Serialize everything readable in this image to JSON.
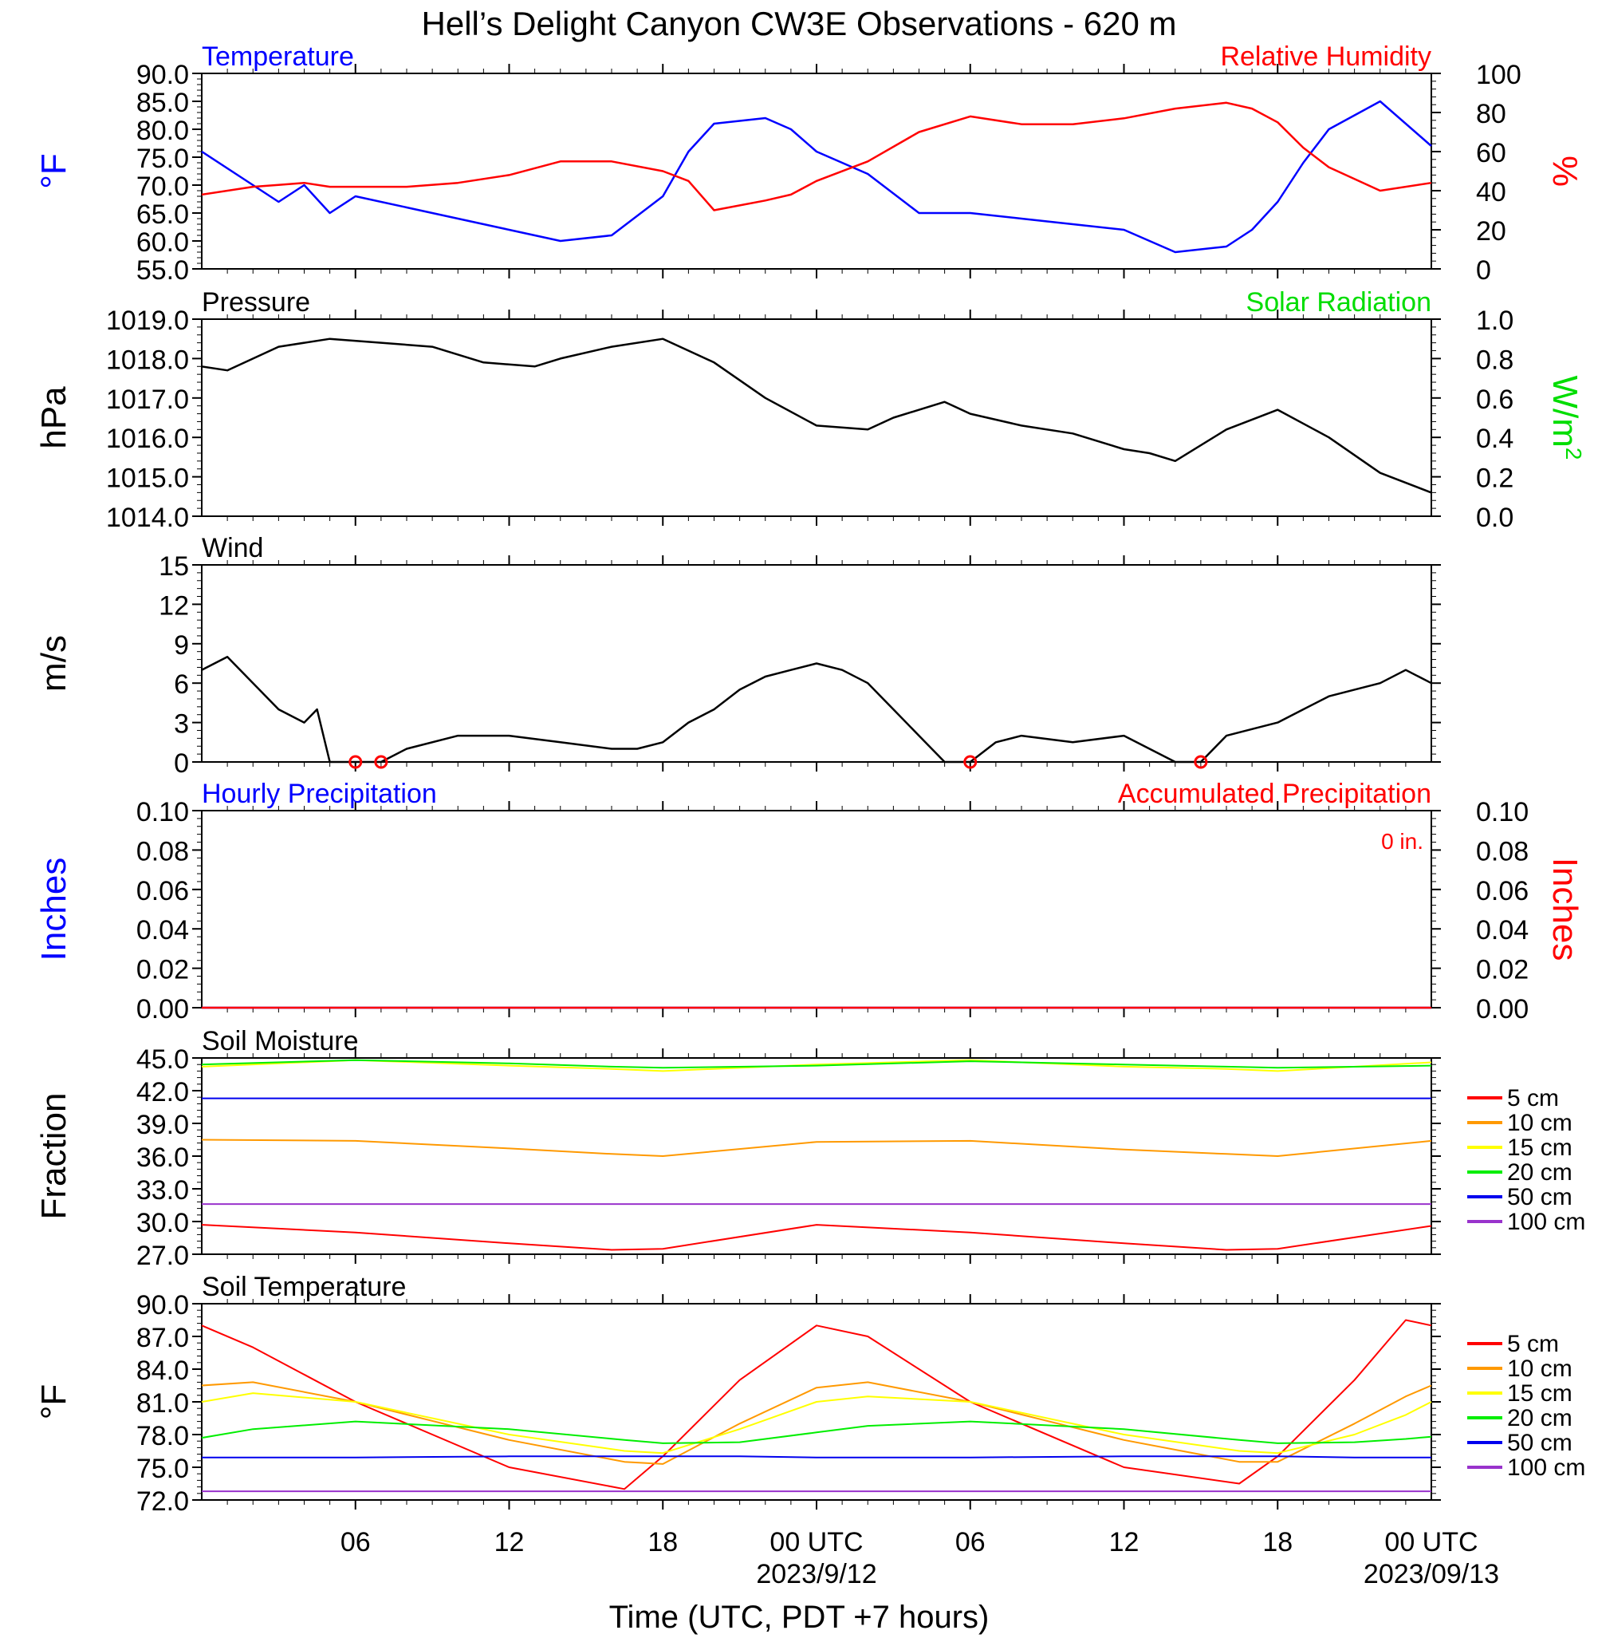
{
  "title": "Hell’s Delight Canyon CW3E Observations - 620 m",
  "xlabel": "Time (UTC, PDT +7 hours)",
  "colors": {
    "blue": "#0000ff",
    "red": "#ff0000",
    "green": "#00dd00",
    "black": "#000000"
  },
  "x_ticks": {
    "hours": [
      6,
      12,
      18,
      24,
      30,
      36,
      42,
      48
    ],
    "labels": [
      "06",
      "12",
      "18",
      "00 UTC",
      "06",
      "12",
      "18",
      "00 UTC"
    ],
    "date_labels": [
      "2023/9/12",
      "2023/09/13"
    ]
  },
  "chart_data": [
    {
      "id": "temp_rh",
      "type": "line",
      "title_left": "Temperature",
      "title_right": "Relative Humidity",
      "ylabel_left": "°F",
      "ylabel_right": "%",
      "ylim_left": [
        55,
        90
      ],
      "yticks_left": [
        "90.0",
        "85.0",
        "80.0",
        "75.0",
        "70.0",
        "65.0",
        "60.0",
        "55.0"
      ],
      "ylim_right": [
        0,
        100
      ],
      "yticks_right": [
        "100",
        "80",
        "60",
        "40",
        "20",
        "0"
      ],
      "x_hours": [
        0,
        2,
        3,
        4,
        5,
        6,
        8,
        10,
        12,
        14,
        16,
        18,
        19,
        20,
        22,
        23,
        24,
        26,
        28,
        30,
        32,
        34,
        36,
        38,
        40,
        41,
        42,
        43,
        44,
        46,
        48
      ],
      "series": [
        {
          "axis": "left",
          "color": "#0000ff",
          "values": [
            76,
            70,
            67,
            70,
            65,
            68,
            66,
            64,
            62,
            60,
            61,
            68,
            76,
            81,
            82,
            80,
            76,
            72,
            65,
            65,
            64,
            63,
            62,
            58,
            59,
            62,
            67,
            74,
            80,
            85,
            77
          ]
        },
        {
          "axis": "right",
          "color": "#ff0000",
          "values": [
            38,
            42,
            43,
            44,
            42,
            42,
            42,
            44,
            48,
            55,
            55,
            50,
            45,
            30,
            35,
            38,
            45,
            55,
            70,
            78,
            74,
            74,
            77,
            82,
            85,
            82,
            75,
            62,
            52,
            40,
            44
          ]
        }
      ]
    },
    {
      "id": "pressure",
      "type": "line",
      "title_left": "Pressure",
      "title_right": "Solar Radiation",
      "ylabel_left": "hPa",
      "ylabel_right": "W/m",
      "ylabel_right_sup": "2",
      "ylim_left": [
        1014,
        1019
      ],
      "yticks_left": [
        "1019.0",
        "1018.0",
        "1017.0",
        "1016.0",
        "1015.0",
        "1014.0"
      ],
      "ylim_right": [
        0,
        1
      ],
      "yticks_right": [
        "1.0",
        "0.8",
        "0.6",
        "0.4",
        "0.2",
        "0.0"
      ],
      "x_hours": [
        0,
        1,
        3,
        5,
        7,
        9,
        11,
        13,
        14,
        16,
        18,
        20,
        22,
        24,
        26,
        27,
        29,
        30,
        32,
        34,
        36,
        37,
        38,
        40,
        42,
        44,
        46,
        48
      ],
      "series": [
        {
          "axis": "left",
          "color": "#000000",
          "values": [
            1017.8,
            1017.7,
            1018.3,
            1018.5,
            1018.4,
            1018.3,
            1017.9,
            1017.8,
            1018.0,
            1018.3,
            1018.5,
            1017.9,
            1017.0,
            1016.3,
            1016.2,
            1016.5,
            1016.9,
            1016.6,
            1016.3,
            1016.1,
            1015.7,
            1015.6,
            1015.4,
            1016.2,
            1016.7,
            1016.0,
            1015.1,
            1014.6
          ]
        }
      ]
    },
    {
      "id": "wind",
      "type": "line",
      "title_left": "Wind",
      "ylabel_left": "m/s",
      "ylim_left": [
        0,
        15
      ],
      "yticks_left": [
        "15",
        "12",
        "9",
        "6",
        "3",
        "0"
      ],
      "x_hours": [
        0,
        1,
        2,
        3,
        4,
        4.5,
        5,
        6,
        7,
        8,
        10,
        12,
        14,
        16,
        17,
        18,
        19,
        20,
        21,
        22,
        23,
        24,
        25,
        26,
        27,
        28,
        29,
        30,
        31,
        32,
        34,
        36,
        38,
        39,
        40,
        41,
        42,
        43,
        44,
        45,
        46,
        47,
        48
      ],
      "series": [
        {
          "axis": "left",
          "color": "#000000",
          "values": [
            7,
            8,
            6,
            4,
            3,
            4,
            0,
            0,
            0,
            1,
            2,
            2,
            1.5,
            1,
            1,
            1.5,
            3,
            4,
            5.5,
            6.5,
            7,
            7.5,
            7,
            6,
            4,
            2,
            0,
            0,
            1.5,
            2,
            1.5,
            2,
            0,
            0,
            2,
            2.5,
            3,
            4,
            5,
            5.5,
            6,
            7,
            6
          ]
        }
      ],
      "calm_hours": [
        6.0,
        7.0,
        30.0,
        39.0
      ]
    },
    {
      "id": "precip",
      "type": "line",
      "title_left": "Hourly Precipitation",
      "title_right": "Accumulated Precipitation",
      "annotation": "0 in.",
      "ylabel_left": "Inches",
      "ylabel_right": "Inches",
      "ylim_left": [
        0,
        0.1
      ],
      "yticks_left": [
        "0.10",
        "0.08",
        "0.06",
        "0.04",
        "0.02",
        "0.00"
      ],
      "ylim_right": [
        0,
        0.1
      ],
      "yticks_right": [
        "0.10",
        "0.08",
        "0.06",
        "0.04",
        "0.02",
        "0.00"
      ],
      "x_hours": [
        0,
        48
      ],
      "series": [
        {
          "axis": "left",
          "color": "#0000ff",
          "values": [
            0,
            0
          ]
        },
        {
          "axis": "right",
          "color": "#ff0000",
          "values": [
            0,
            0
          ]
        }
      ]
    },
    {
      "id": "soil_moisture",
      "type": "line",
      "title_left": "Soil Moisture",
      "ylabel_left": "Fraction",
      "ylim_left": [
        27,
        45
      ],
      "yticks_left": [
        "45.0",
        "42.0",
        "39.0",
        "36.0",
        "33.0",
        "30.0",
        "27.0"
      ],
      "x_hours": [
        0,
        6,
        12,
        16,
        18,
        24,
        30,
        36,
        40,
        42,
        48
      ],
      "series": [
        {
          "name": "5 cm",
          "color": "#ff0000",
          "values": [
            29.7,
            29.0,
            28.0,
            27.4,
            27.5,
            29.7,
            29.0,
            28.0,
            27.4,
            27.5,
            29.6
          ]
        },
        {
          "name": "10 cm",
          "color": "#ff9900",
          "values": [
            37.5,
            37.4,
            36.7,
            36.2,
            36.0,
            37.3,
            37.4,
            36.6,
            36.2,
            36.0,
            37.4
          ]
        },
        {
          "name": "15 cm",
          "color": "#ffff00",
          "values": [
            44.2,
            44.8,
            44.3,
            44.0,
            43.8,
            44.4,
            44.8,
            44.2,
            44.0,
            43.8,
            44.6
          ]
        },
        {
          "name": "20 cm",
          "color": "#00ee00",
          "values": [
            44.4,
            44.8,
            44.5,
            44.2,
            44.1,
            44.3,
            44.7,
            44.4,
            44.2,
            44.1,
            44.3
          ]
        },
        {
          "name": "50 cm",
          "color": "#0000ee",
          "values": [
            41.3,
            41.3,
            41.3,
            41.3,
            41.3,
            41.3,
            41.3,
            41.3,
            41.3,
            41.3,
            41.3
          ]
        },
        {
          "name": "100 cm",
          "color": "#9933cc",
          "values": [
            31.6,
            31.6,
            31.6,
            31.6,
            31.6,
            31.6,
            31.6,
            31.6,
            31.6,
            31.6,
            31.6
          ]
        }
      ]
    },
    {
      "id": "soil_temp",
      "type": "line",
      "title_left": "Soil Temperature",
      "ylabel_left": "°F",
      "ylim_left": [
        72,
        90
      ],
      "yticks_left": [
        "90.0",
        "87.0",
        "84.0",
        "81.0",
        "78.0",
        "75.0",
        "72.0"
      ],
      "x_hours": [
        0,
        2,
        6,
        12,
        16.5,
        18,
        21,
        24,
        26,
        30,
        36,
        40.5,
        42,
        45,
        47,
        48
      ],
      "series": [
        {
          "name": "5 cm",
          "color": "#ff0000",
          "values": [
            88,
            86,
            81,
            75,
            73,
            76,
            83,
            88,
            87,
            81,
            75,
            73.5,
            76,
            83,
            88.5,
            88
          ]
        },
        {
          "name": "10 cm",
          "color": "#ff9900",
          "values": [
            82.5,
            82.8,
            81,
            77.5,
            75.5,
            75.3,
            79,
            82.3,
            82.8,
            81,
            77.5,
            75.5,
            75.5,
            79,
            81.5,
            82.5
          ]
        },
        {
          "name": "15 cm",
          "color": "#ffff00",
          "values": [
            81,
            81.8,
            81,
            78,
            76.5,
            76.3,
            78.5,
            81,
            81.5,
            81,
            78,
            76.5,
            76.3,
            78,
            79.8,
            81
          ]
        },
        {
          "name": "20 cm",
          "color": "#00ee00",
          "values": [
            77.7,
            78.5,
            79.2,
            78.5,
            77.5,
            77.2,
            77.3,
            78.2,
            78.8,
            79.2,
            78.5,
            77.5,
            77.2,
            77.3,
            77.6,
            77.8
          ]
        },
        {
          "name": "50 cm",
          "color": "#0000ee",
          "values": [
            75.9,
            75.9,
            75.9,
            76,
            76,
            76,
            76,
            75.9,
            75.9,
            75.9,
            76,
            76,
            76,
            75.9,
            75.9,
            75.9
          ]
        },
        {
          "name": "100 cm",
          "color": "#9933cc",
          "values": [
            72.8,
            72.8,
            72.8,
            72.8,
            72.8,
            72.8,
            72.8,
            72.8,
            72.8,
            72.8,
            72.8,
            72.8,
            72.8,
            72.8,
            72.8,
            72.8
          ]
        }
      ]
    }
  ]
}
